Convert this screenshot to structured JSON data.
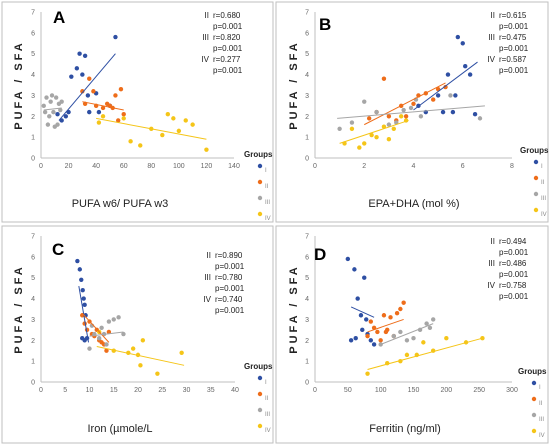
{
  "colors": {
    "I": "#2e4fa3",
    "II": "#ee6d1a",
    "III": "#a6a6a6",
    "IV": "#f5c518"
  },
  "legend": {
    "title": "Groups",
    "entries": [
      "I",
      "II",
      "III",
      "IV"
    ]
  },
  "chart_data": [
    {
      "type": "scatter",
      "panel": "A",
      "ylabel": "PUFA / SFA",
      "xlabel": "PUFA w6/ PUFA w3",
      "xlim": [
        0,
        140
      ],
      "ylim": [
        0,
        7
      ],
      "xticks": [
        0,
        20,
        40,
        60,
        80,
        100,
        120,
        140
      ],
      "yticks": [
        0,
        1,
        2,
        3,
        4,
        5,
        6,
        7
      ],
      "grid": false,
      "legend_position": "right",
      "stats": [
        {
          "group": "II",
          "r": "r=0.680",
          "p": "p=0.001"
        },
        {
          "group": "III",
          "r": "r=0.820",
          "p": "p=0.001"
        },
        {
          "group": "IV",
          "r": "r=0.277",
          "p": "p=0.001"
        }
      ],
      "series": [
        {
          "name": "I",
          "points": [
            [
              12,
              2.1
            ],
            [
              15,
              1.8
            ],
            [
              18,
              2.0
            ],
            [
              20,
              2.2
            ],
            [
              22,
              3.9
            ],
            [
              26,
              4.3
            ],
            [
              28,
              5.0
            ],
            [
              30,
              4.0
            ],
            [
              32,
              4.9
            ],
            [
              34,
              3.0
            ],
            [
              35,
              2.2
            ],
            [
              40,
              3.1
            ],
            [
              42,
              2.2
            ],
            [
              50,
              2.5
            ],
            [
              54,
              5.8
            ]
          ],
          "trend": [
            [
              13,
              1.8
            ],
            [
              54,
              5.0
            ]
          ]
        },
        {
          "name": "II",
          "points": [
            [
              30,
              3.2
            ],
            [
              32,
              2.6
            ],
            [
              35,
              3.8
            ],
            [
              38,
              3.2
            ],
            [
              40,
              2.5
            ],
            [
              45,
              2.4
            ],
            [
              48,
              2.6
            ],
            [
              50,
              2.5
            ],
            [
              52,
              2.4
            ],
            [
              54,
              3.0
            ],
            [
              56,
              1.8
            ],
            [
              58,
              3.3
            ],
            [
              60,
              2.1
            ]
          ],
          "trend": [
            [
              30,
              2.7
            ],
            [
              60,
              2.3
            ]
          ]
        },
        {
          "name": "III",
          "points": [
            [
              2,
              2.5
            ],
            [
              3,
              2.2
            ],
            [
              4,
              2.9
            ],
            [
              5,
              1.6
            ],
            [
              6,
              2.0
            ],
            [
              7,
              2.7
            ],
            [
              8,
              3.0
            ],
            [
              9,
              2.2
            ],
            [
              10,
              1.5
            ],
            [
              11,
              2.9
            ],
            [
              12,
              1.6
            ],
            [
              13,
              2.6
            ],
            [
              14,
              2.3
            ],
            [
              15,
              2.7
            ]
          ],
          "trend": [
            [
              2,
              2.3
            ],
            [
              15,
              2.4
            ]
          ]
        },
        {
          "name": "IV",
          "points": [
            [
              42,
              1.7
            ],
            [
              45,
              2.0
            ],
            [
              60,
              1.9
            ],
            [
              65,
              0.8
            ],
            [
              72,
              0.6
            ],
            [
              80,
              1.4
            ],
            [
              88,
              1.1
            ],
            [
              92,
              2.1
            ],
            [
              96,
              1.9
            ],
            [
              100,
              1.3
            ],
            [
              105,
              1.8
            ],
            [
              110,
              1.6
            ],
            [
              120,
              0.4
            ]
          ],
          "trend": [
            [
              40,
              1.9
            ],
            [
              120,
              0.9
            ]
          ]
        }
      ]
    },
    {
      "type": "scatter",
      "panel": "B",
      "ylabel": "PUFA / SFA",
      "xlabel": "EPA+DHA (mol %)",
      "xlim": [
        0,
        8
      ],
      "ylim": [
        0,
        7
      ],
      "xticks": [
        0,
        2,
        4,
        6,
        8
      ],
      "yticks": [
        0,
        1,
        2,
        3,
        4,
        5,
        6,
        7
      ],
      "grid": false,
      "legend_position": "right",
      "stats": [
        {
          "group": "II",
          "r": "r=0.615",
          "p": "p=0.001"
        },
        {
          "group": "III",
          "r": "r=0.475",
          "p": "p=0.001"
        },
        {
          "group": "IV",
          "r": "r=0.587",
          "p": "p=0.001"
        }
      ],
      "series": [
        {
          "name": "I",
          "points": [
            [
              4.2,
              2.5
            ],
            [
              4.5,
              2.2
            ],
            [
              5.0,
              3.0
            ],
            [
              5.2,
              2.2
            ],
            [
              5.4,
              4.0
            ],
            [
              5.6,
              2.2
            ],
            [
              5.7,
              3.0
            ],
            [
              5.8,
              5.8
            ],
            [
              6.0,
              5.5
            ],
            [
              6.1,
              4.4
            ],
            [
              6.3,
              4.0
            ],
            [
              6.5,
              2.1
            ]
          ],
          "trend": [
            [
              4.0,
              2.3
            ],
            [
              6.6,
              4.6
            ]
          ]
        },
        {
          "name": "II",
          "points": [
            [
              2.2,
              1.9
            ],
            [
              2.5,
              2.2
            ],
            [
              2.8,
              3.8
            ],
            [
              3.0,
              2.0
            ],
            [
              3.3,
              1.8
            ],
            [
              3.5,
              2.5
            ],
            [
              3.7,
              2.0
            ],
            [
              4.0,
              2.6
            ],
            [
              4.2,
              3.0
            ],
            [
              4.5,
              3.1
            ],
            [
              4.8,
              2.8
            ],
            [
              5.0,
              3.3
            ],
            [
              5.3,
              3.4
            ]
          ],
          "trend": [
            [
              2.0,
              1.6
            ],
            [
              5.3,
              3.6
            ]
          ]
        },
        {
          "name": "III",
          "points": [
            [
              1.0,
              1.4
            ],
            [
              1.5,
              1.7
            ],
            [
              2.0,
              2.7
            ],
            [
              2.5,
              2.2
            ],
            [
              3.0,
              1.6
            ],
            [
              3.3,
              1.7
            ],
            [
              3.6,
              2.3
            ],
            [
              3.9,
              2.4
            ],
            [
              4.1,
              2.8
            ],
            [
              4.3,
              2.0
            ],
            [
              5.5,
              3.0
            ],
            [
              6.7,
              1.9
            ]
          ],
          "trend": [
            [
              0.9,
              1.9
            ],
            [
              6.9,
              2.5
            ]
          ]
        },
        {
          "name": "IV",
          "points": [
            [
              1.2,
              0.7
            ],
            [
              1.5,
              1.4
            ],
            [
              1.8,
              0.5
            ],
            [
              2.0,
              0.7
            ],
            [
              2.3,
              1.1
            ],
            [
              2.5,
              1.0
            ],
            [
              2.8,
              1.5
            ],
            [
              3.0,
              0.9
            ],
            [
              3.2,
              1.4
            ],
            [
              3.5,
              2.0
            ],
            [
              3.7,
              1.8
            ]
          ],
          "trend": [
            [
              1.0,
              0.7
            ],
            [
              3.8,
              1.8
            ]
          ]
        }
      ]
    },
    {
      "type": "scatter",
      "panel": "C",
      "ylabel": "PUFA / SFA",
      "xlabel": "Iron (µmole/L",
      "xlim": [
        0,
        40
      ],
      "ylim": [
        0,
        7
      ],
      "xticks": [
        0,
        5,
        10,
        15,
        20,
        25,
        30,
        35,
        40
      ],
      "yticks": [
        0,
        1,
        2,
        3,
        4,
        5,
        6,
        7
      ],
      "grid": false,
      "legend_position": "right",
      "stats": [
        {
          "group": "II",
          "r": "r=0.890",
          "p": "p=0.001"
        },
        {
          "group": "III",
          "r": "r=0.780",
          "p": "p=0.001"
        },
        {
          "group": "IV",
          "r": "r=0.740",
          "p": "p=0.001"
        }
      ],
      "series": [
        {
          "name": "I",
          "points": [
            [
              7.5,
              5.8
            ],
            [
              8.0,
              5.4
            ],
            [
              8.3,
              4.9
            ],
            [
              8.6,
              4.4
            ],
            [
              8.8,
              4.0
            ],
            [
              9.0,
              3.7
            ],
            [
              9.2,
              3.2
            ],
            [
              8.5,
              2.1
            ],
            [
              9.0,
              2.0
            ],
            [
              9.5,
              2.1
            ]
          ],
          "trend": [
            [
              7.8,
              4.6
            ],
            [
              9.8,
              1.9
            ]
          ]
        },
        {
          "name": "II",
          "points": [
            [
              8.5,
              3.2
            ],
            [
              9.0,
              2.8
            ],
            [
              9.5,
              2.5
            ],
            [
              10.0,
              2.9
            ],
            [
              10.5,
              2.3
            ],
            [
              11.0,
              2.2
            ],
            [
              11.5,
              2.5
            ],
            [
              12.0,
              2.0
            ],
            [
              12.5,
              1.9
            ],
            [
              13.0,
              1.8
            ],
            [
              14.0,
              2.4
            ],
            [
              13.5,
              1.5
            ]
          ],
          "trend": [
            [
              8.5,
              3.3
            ],
            [
              14.0,
              1.9
            ]
          ]
        },
        {
          "name": "III",
          "points": [
            [
              10.0,
              1.6
            ],
            [
              10.5,
              2.7
            ],
            [
              11.0,
              2.3
            ],
            [
              12.0,
              2.1
            ],
            [
              12.5,
              2.6
            ],
            [
              13.0,
              2.3
            ],
            [
              13.5,
              1.8
            ],
            [
              14.0,
              2.9
            ],
            [
              15.0,
              3.0
            ],
            [
              16.0,
              3.1
            ],
            [
              17.0,
              2.3
            ]
          ],
          "trend": [
            [
              10.0,
              2.2
            ],
            [
              17.0,
              2.4
            ]
          ]
        },
        {
          "name": "IV",
          "points": [
            [
              12.0,
              2.4
            ],
            [
              15.0,
              1.5
            ],
            [
              18.0,
              1.4
            ],
            [
              19.0,
              1.6
            ],
            [
              20.0,
              1.3
            ],
            [
              20.5,
              0.8
            ],
            [
              21.0,
              2.0
            ],
            [
              24.0,
              0.4
            ],
            [
              29.0,
              1.4
            ]
          ],
          "trend": [
            [
              11.5,
              1.7
            ],
            [
              29.5,
              0.8
            ]
          ]
        }
      ]
    },
    {
      "type": "scatter",
      "panel": "D",
      "ylabel": "PUFA / SFA",
      "xlabel": "Ferritin (ng/ml)",
      "xlim": [
        0,
        300
      ],
      "ylim": [
        0,
        7
      ],
      "xticks": [
        0,
        50,
        100,
        150,
        200,
        250,
        300
      ],
      "yticks": [
        0,
        1,
        2,
        3,
        4,
        5,
        6,
        7
      ],
      "grid": false,
      "legend_position": "right",
      "stats": [
        {
          "group": "II",
          "r": "r=0.494",
          "p": "p=0.001"
        },
        {
          "group": "III",
          "r": "r=0.486",
          "p": "p=0.001"
        },
        {
          "group": "IV",
          "r": "r=0.758",
          "p": "p=0.001"
        }
      ],
      "series": [
        {
          "name": "I",
          "points": [
            [
              50,
              5.9
            ],
            [
              55,
              2.0
            ],
            [
              60,
              5.4
            ],
            [
              62,
              2.1
            ],
            [
              65,
              4.0
            ],
            [
              70,
              3.2
            ],
            [
              72,
              2.5
            ],
            [
              75,
              5.0
            ],
            [
              78,
              3.0
            ],
            [
              80,
              2.3
            ],
            [
              85,
              2.0
            ],
            [
              90,
              1.8
            ]
          ],
          "trend": [
            [
              55,
              3.6
            ],
            [
              90,
              3.1
            ]
          ]
        },
        {
          "name": "II",
          "points": [
            [
              80,
              2.2
            ],
            [
              85,
              2.9
            ],
            [
              90,
              2.6
            ],
            [
              95,
              2.4
            ],
            [
              100,
              2.0
            ],
            [
              105,
              3.2
            ],
            [
              108,
              2.4
            ],
            [
              110,
              2.5
            ],
            [
              115,
              3.1
            ],
            [
              120,
              2.2
            ],
            [
              125,
              3.3
            ],
            [
              130,
              3.5
            ],
            [
              135,
              3.8
            ]
          ],
          "trend": [
            [
              80,
              2.4
            ],
            [
              135,
              3.0
            ]
          ]
        },
        {
          "name": "III",
          "points": [
            [
              100,
              1.8
            ],
            [
              120,
              2.2
            ],
            [
              130,
              2.4
            ],
            [
              140,
              2.0
            ],
            [
              150,
              2.1
            ],
            [
              160,
              2.5
            ],
            [
              170,
              2.8
            ],
            [
              175,
              2.6
            ],
            [
              180,
              3.0
            ]
          ],
          "trend": [
            [
              100,
              1.8
            ],
            [
              180,
              2.8
            ]
          ]
        },
        {
          "name": "IV",
          "points": [
            [
              80,
              0.4
            ],
            [
              110,
              0.9
            ],
            [
              130,
              1.0
            ],
            [
              140,
              1.3
            ],
            [
              155,
              1.3
            ],
            [
              165,
              1.9
            ],
            [
              180,
              1.5
            ],
            [
              200,
              2.1
            ],
            [
              230,
              1.9
            ],
            [
              255,
              2.1
            ]
          ],
          "trend": [
            [
              80,
              0.6
            ],
            [
              255,
              2.1
            ]
          ]
        }
      ]
    }
  ]
}
